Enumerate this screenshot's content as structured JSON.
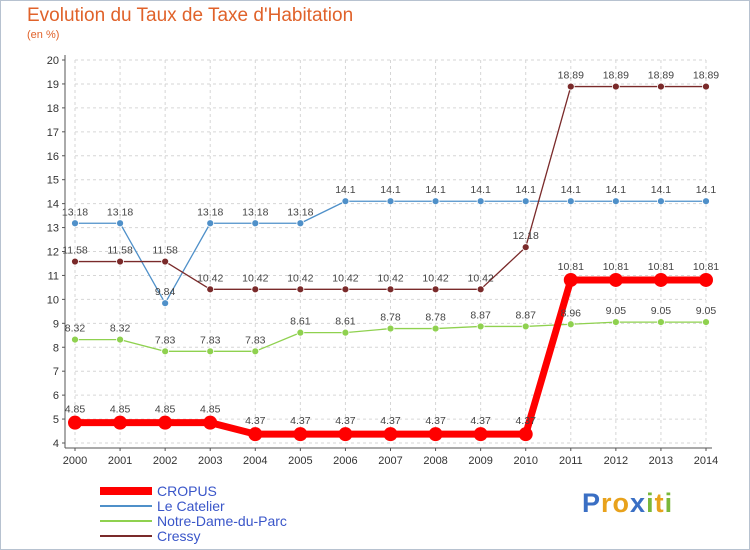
{
  "title": "Evolution du Taux de Taxe d'Habitation",
  "subtitle": "(en %)",
  "brand": "Proxiti",
  "brand_colors": [
    "#3a6fc4",
    "#e8a21c",
    "#e8a21c",
    "#3a6fc4",
    "#7ab83a",
    "#e8a21c",
    "#7ab83a"
  ],
  "chart_data": {
    "type": "line",
    "x": [
      2000,
      2001,
      2002,
      2003,
      2004,
      2005,
      2006,
      2007,
      2008,
      2009,
      2010,
      2011,
      2012,
      2013,
      2014
    ],
    "ylim": [
      4,
      20
    ],
    "yticks": [
      4,
      5,
      6,
      7,
      8,
      9,
      10,
      11,
      12,
      13,
      14,
      15,
      16,
      17,
      18,
      19,
      20
    ],
    "grid": true,
    "legend_position": "bottom-left",
    "series": [
      {
        "name": "CROPUS",
        "color": "#ff0000",
        "bold": true,
        "values": [
          4.85,
          4.85,
          4.85,
          4.85,
          4.37,
          4.37,
          4.37,
          4.37,
          4.37,
          4.37,
          4.37,
          10.81,
          10.81,
          10.81,
          10.81
        ],
        "labels": [
          "4.85",
          "4.85",
          "4.85",
          "4.85",
          "4.37",
          "4.37",
          "4.37",
          "4.37",
          "4.37",
          "4.37",
          "4.37",
          "10.81",
          "10.81",
          "10.81",
          "10.81"
        ]
      },
      {
        "name": "Le Catelier",
        "color": "#4f90c9",
        "bold": false,
        "values": [
          13.18,
          13.18,
          9.84,
          13.18,
          13.18,
          13.18,
          14.1,
          14.1,
          14.1,
          14.1,
          14.1,
          14.1,
          14.1,
          14.1,
          14.1
        ],
        "labels": [
          "13.18",
          "13.18",
          "9.84",
          "13.18",
          "13.18",
          "13.18",
          "14.1",
          "14.1",
          "14.1",
          "14.1",
          "14.1",
          "14.1",
          "14.1",
          "14.1",
          "14.1"
        ]
      },
      {
        "name": "Notre-Dame-du-Parc",
        "color": "#8fd14f",
        "bold": false,
        "values": [
          8.32,
          8.32,
          7.83,
          7.83,
          7.83,
          8.61,
          8.61,
          8.78,
          8.78,
          8.87,
          8.87,
          8.96,
          9.05,
          9.05,
          9.05
        ],
        "labels": [
          "8.32",
          "8.32",
          "7.83",
          "7.83",
          "7.83",
          "8.61",
          "8.61",
          "8.78",
          "8.78",
          "8.87",
          "8.87",
          "8.96",
          "9.05",
          "9.05",
          "9.05"
        ]
      },
      {
        "name": "Cressy",
        "color": "#7a2a2a",
        "bold": false,
        "values": [
          11.58,
          11.58,
          11.58,
          10.42,
          10.42,
          10.42,
          10.42,
          10.42,
          10.42,
          10.42,
          12.18,
          18.89,
          18.89,
          18.89,
          18.89
        ],
        "labels": [
          "11.58",
          "11.58",
          "11.58",
          "10.42",
          "10.42",
          "10.42",
          "10.42",
          "10.42",
          "10.42",
          "10.42",
          "12.18",
          "18.89",
          "18.89",
          "18.89",
          "18.89"
        ]
      }
    ]
  }
}
